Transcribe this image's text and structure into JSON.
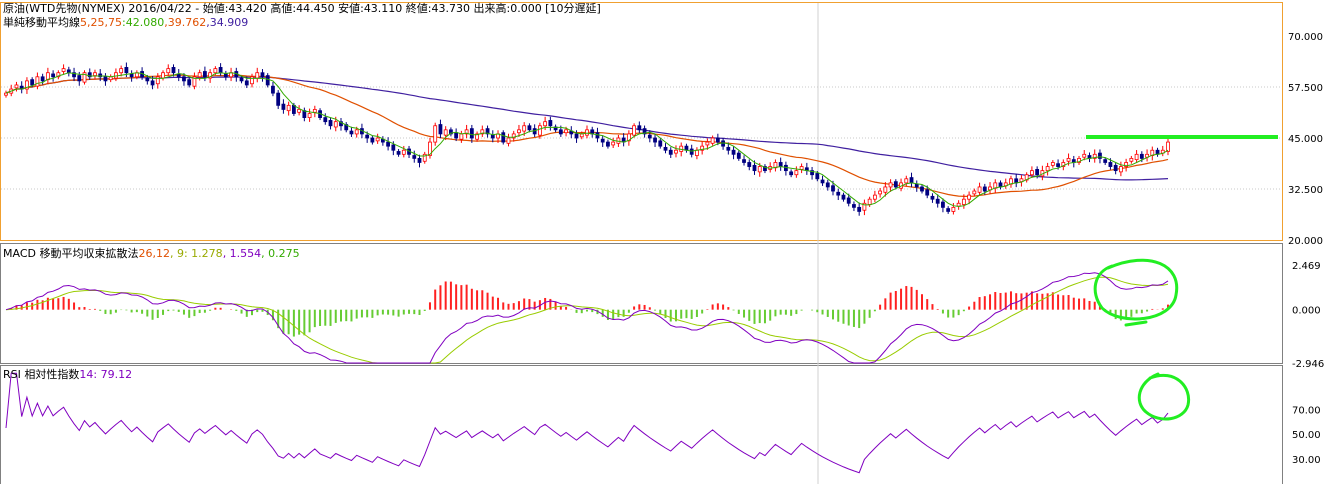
{
  "colors": {
    "candle_up": "#ff0000",
    "candle_down": "#000080",
    "ma5": "#33aa00",
    "ma25": "#e05000",
    "ma75": "#4020a0",
    "macd": "#8000c0",
    "signal": "#99cc00",
    "hist_pos": "#ff2020",
    "hist_neg": "#66cc33",
    "rsi": "#8000c0",
    "annotation": "#22ee22",
    "active_border": "#f0a030",
    "grid": "#c8c8c8"
  },
  "price_header": {
    "title": "原油(WTD先物(NYMEX) 2016/04/22 - 始値:43.420 高値:44.450 安値:43.110 終値:43.730 出来高:0.000 [10分遅延]",
    "ma_label": "単純移動平均線",
    "ma_periods": "5,25,75",
    "ma_values": [
      ":42.080",
      ",39.762",
      ",34.909"
    ]
  },
  "macd_header": {
    "label": "MACD 移動平均収束拡散法",
    "periods": "26,12",
    "signal_period": ", 9",
    "values": [
      ": 1.278",
      ", 1.554",
      ", 0.275"
    ]
  },
  "rsi_header": {
    "label": "RSI 相対性指数",
    "period": "14",
    "value": ": 79.12"
  },
  "chart_data": [
    {
      "type": "candlestick",
      "ylim": [
        20,
        70
      ],
      "y_ticks": [
        "70.000",
        "57.500",
        "45.000",
        "32.500",
        "20.000"
      ],
      "close": [
        56,
        57,
        58,
        57,
        59,
        58,
        60,
        59,
        61,
        60,
        61,
        62,
        61,
        60,
        59,
        61,
        60,
        61,
        60,
        59,
        60,
        61,
        62,
        61,
        60,
        61,
        60,
        59,
        58,
        60,
        61,
        62,
        61,
        60,
        59,
        58,
        60,
        61,
        60,
        61,
        62,
        61,
        60,
        61,
        60,
        59,
        58,
        60,
        61,
        60,
        58,
        56,
        53,
        52,
        53,
        51,
        52,
        50,
        51,
        52,
        50,
        49,
        48,
        49,
        48,
        47,
        46,
        47,
        46,
        45,
        44,
        45,
        44,
        43,
        42,
        41,
        42,
        41,
        40,
        39,
        41,
        44,
        48,
        46,
        47,
        46,
        45,
        46,
        47,
        45,
        46,
        47,
        46,
        45,
        46,
        44,
        45,
        46,
        47,
        48,
        47,
        46,
        48,
        49,
        48,
        47,
        46,
        47,
        46,
        45,
        46,
        47,
        46,
        45,
        44,
        43,
        44,
        45,
        44,
        46,
        48,
        47,
        46,
        45,
        44,
        43,
        42,
        41,
        42,
        43,
        42,
        41,
        42,
        43,
        44,
        45,
        44,
        43,
        42,
        41,
        40,
        39,
        38,
        37,
        38,
        37,
        38,
        39,
        38,
        37,
        36,
        37,
        38,
        37,
        36,
        35,
        34,
        33,
        32,
        31,
        30,
        29,
        28,
        27,
        29,
        30,
        31,
        32,
        33,
        34,
        33,
        34,
        35,
        34,
        33,
        32,
        31,
        30,
        29,
        28,
        27,
        28,
        29,
        30,
        31,
        32,
        33,
        32,
        33,
        34,
        33,
        34,
        35,
        34,
        35,
        36,
        37,
        36,
        37,
        38,
        39,
        38,
        39,
        40,
        39,
        40,
        41,
        40,
        41,
        40,
        39,
        38,
        37,
        38,
        39,
        40,
        41,
        40,
        41,
        42,
        41,
        42,
        44
      ],
      "ma5_line_vertices_shown": true,
      "ma25_line_vertices_shown": true,
      "ma75_line_vertices_shown": true
    },
    {
      "type": "macd",
      "y_ticks": [
        "2.469",
        "0.000",
        "-2.946"
      ],
      "ylim": [
        -2.946,
        2.469
      ]
    },
    {
      "type": "rsi",
      "y_ticks": [
        "70.00",
        "50.00",
        "30.00"
      ],
      "ylim": [
        10,
        100
      ]
    }
  ]
}
